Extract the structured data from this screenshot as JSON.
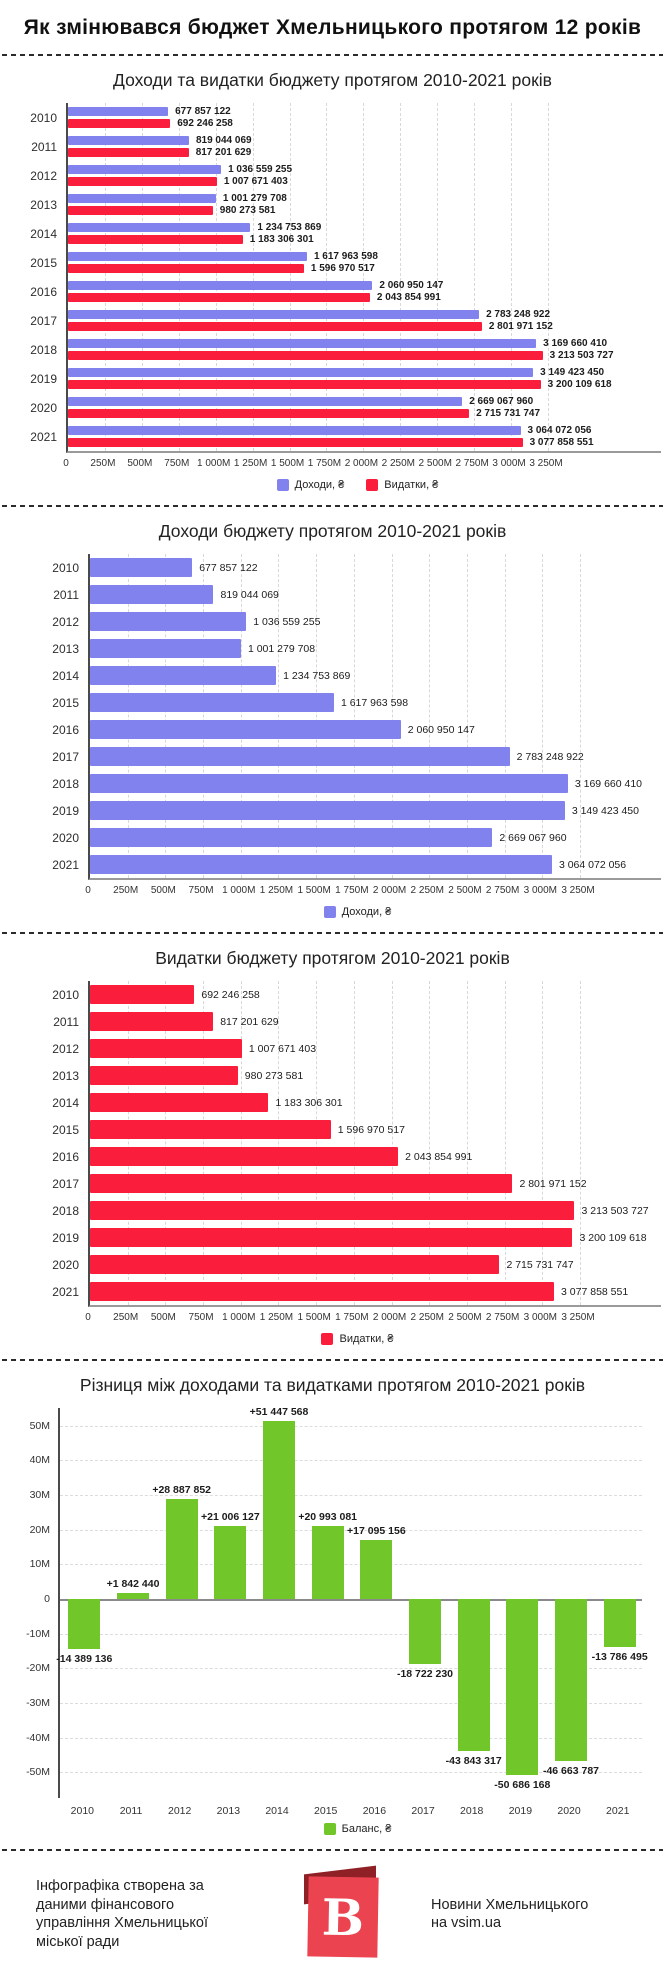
{
  "page": {
    "title": "Як змінювався бюджет Хмельницького протягом 12 років"
  },
  "footer": {
    "credit": "Інфографіка створена за даними фінансового управління Хмельницької міської ради",
    "logo_letter": "В",
    "source_line1": "Новини Хмельницького",
    "source_line2": "на vsim.ua"
  },
  "chart_data": [
    {
      "id": "income-expense",
      "type": "bar",
      "orientation": "horizontal",
      "title": "Доходи та видатки бюджету протягом 2010-2021 років",
      "categories": [
        "2010",
        "2011",
        "2012",
        "2013",
        "2014",
        "2015",
        "2016",
        "2017",
        "2018",
        "2019",
        "2020",
        "2021"
      ],
      "xlim": [
        0,
        3250000000
      ],
      "grid": true,
      "legend_position": "bottom",
      "x_ticks": {
        "values": [
          0,
          250000000,
          500000000,
          750000000,
          1000000000,
          1250000000,
          1500000000,
          1750000000,
          2000000000,
          2250000000,
          2500000000,
          2750000000,
          3000000000,
          3250000000
        ],
        "labels": [
          "0",
          "250M",
          "500M",
          "750M",
          "1 000M",
          "1 250M",
          "1 500M",
          "1 750M",
          "2 000M",
          "2 250M",
          "2 500M",
          "2 750M",
          "3 000M",
          "3 250M"
        ]
      },
      "series": [
        {
          "name": "Доходи, ₴",
          "color": "#8282ee",
          "values": [
            677857122,
            819044069,
            1036559255,
            1001279708,
            1234753869,
            1617963598,
            2060950147,
            2783248922,
            3169660410,
            3149423450,
            2669067960,
            3064072056
          ],
          "labels": [
            "677 857 122",
            "819 044 069",
            "1 036 559 255",
            "1 001 279 708",
            "1 234 753 869",
            "1 617 963 598",
            "2 060 950 147",
            "2 783 248 922",
            "3 169 660 410",
            "3 149 423 450",
            "2 669 067 960",
            "3 064 072 056"
          ]
        },
        {
          "name": "Видатки, ₴",
          "color": "#fa1e3c",
          "values": [
            692246258,
            817201629,
            1007671403,
            980273581,
            1183306301,
            1596970517,
            2043854991,
            2801971152,
            3213503727,
            3200109618,
            2715731747,
            3077858551
          ],
          "labels": [
            "692 246 258",
            "817 201 629",
            "1 007 671 403",
            "980 273 581",
            "1 183 306 301",
            "1 596 970 517",
            "2 043 854 991",
            "2 801 971 152",
            "3 213 503 727",
            "3 200 109 618",
            "2 715 731 747",
            "3 077 858 551"
          ]
        }
      ]
    },
    {
      "id": "income",
      "type": "bar",
      "orientation": "horizontal",
      "title": "Доходи бюджету протягом 2010-2021 років",
      "categories": [
        "2010",
        "2011",
        "2012",
        "2013",
        "2014",
        "2015",
        "2016",
        "2017",
        "2018",
        "2019",
        "2020",
        "2021"
      ],
      "xlim": [
        0,
        3250000000
      ],
      "grid": true,
      "legend_position": "bottom",
      "x_ticks": {
        "values": [
          0,
          250000000,
          500000000,
          750000000,
          1000000000,
          1250000000,
          1500000000,
          1750000000,
          2000000000,
          2250000000,
          2500000000,
          2750000000,
          3000000000,
          3250000000
        ],
        "labels": [
          "0",
          "250M",
          "500M",
          "750M",
          "1 000M",
          "1 250M",
          "1 500M",
          "1 750M",
          "2 000M",
          "2 250M",
          "2 500M",
          "2 750M",
          "3 000M",
          "3 250M"
        ]
      },
      "series": [
        {
          "name": "Доходи, ₴",
          "color": "#8282ee",
          "values": [
            677857122,
            819044069,
            1036559255,
            1001279708,
            1234753869,
            1617963598,
            2060950147,
            2783248922,
            3169660410,
            3149423450,
            2669067960,
            3064072056
          ],
          "labels": [
            "677 857 122",
            "819 044 069",
            "1 036 559 255",
            "1 001 279 708",
            "1 234 753 869",
            "1 617 963 598",
            "2 060 950 147",
            "2 783 248 922",
            "3 169 660 410",
            "3 149 423 450",
            "2 669 067 960",
            "3 064 072 056"
          ]
        }
      ]
    },
    {
      "id": "expense",
      "type": "bar",
      "orientation": "horizontal",
      "title": "Видатки бюджету протягом 2010-2021 років",
      "categories": [
        "2010",
        "2011",
        "2012",
        "2013",
        "2014",
        "2015",
        "2016",
        "2017",
        "2018",
        "2019",
        "2020",
        "2021"
      ],
      "xlim": [
        0,
        3250000000
      ],
      "grid": true,
      "legend_position": "bottom",
      "x_ticks": {
        "values": [
          0,
          250000000,
          500000000,
          750000000,
          1000000000,
          1250000000,
          1500000000,
          1750000000,
          2000000000,
          2250000000,
          2500000000,
          2750000000,
          3000000000,
          3250000000
        ],
        "labels": [
          "0",
          "250M",
          "500M",
          "750M",
          "1 000M",
          "1 250M",
          "1 500M",
          "1 750M",
          "2 000M",
          "2 250M",
          "2 500M",
          "2 750M",
          "3 000M",
          "3 250M"
        ]
      },
      "series": [
        {
          "name": "Видатки, ₴",
          "color": "#fa1e3c",
          "values": [
            692246258,
            817201629,
            1007671403,
            980273581,
            1183306301,
            1596970517,
            2043854991,
            2801971152,
            3213503727,
            3200109618,
            2715731747,
            3077858551
          ],
          "labels": [
            "692 246 258",
            "817 201 629",
            "1 007 671 403",
            "980 273 581",
            "1 183 306 301",
            "1 596 970 517",
            "2 043 854 991",
            "2 801 971 152",
            "3 213 503 727",
            "3 200 109 618",
            "2 715 731 747",
            "3 077 858 551"
          ]
        }
      ]
    },
    {
      "id": "balance",
      "type": "bar",
      "orientation": "vertical",
      "title": "Різниця між доходами та видатками протягом 2010-2021 років",
      "categories": [
        "2010",
        "2011",
        "2012",
        "2013",
        "2014",
        "2015",
        "2016",
        "2017",
        "2018",
        "2019",
        "2020",
        "2021"
      ],
      "ylim": [
        -57500000,
        55000000
      ],
      "grid": true,
      "legend_position": "bottom",
      "y_ticks": {
        "values": [
          50000000,
          40000000,
          30000000,
          20000000,
          10000000,
          0,
          -10000000,
          -20000000,
          -30000000,
          -40000000,
          -50000000
        ],
        "labels": [
          "50M",
          "40M",
          "30M",
          "20M",
          "10M",
          "0",
          "-10M",
          "-20M",
          "-30M",
          "-40M",
          "-50M"
        ]
      },
      "series": [
        {
          "name": "Баланс, ₴",
          "color": "#71c62a",
          "values": [
            -14389136,
            1842440,
            28887852,
            21006127,
            51447568,
            20993081,
            17095156,
            -18722230,
            -43843317,
            -50686168,
            -46663787,
            -13786495
          ],
          "labels": [
            "-14 389 136",
            "+1 842 440",
            "+28 887 852",
            "+21 006 127",
            "+51 447 568",
            "+20 993 081",
            "+17 095 156",
            "-18 722 230",
            "-43 843 317",
            "-50 686 168",
            "-46 663 787",
            "-13 786 495"
          ]
        }
      ]
    }
  ]
}
